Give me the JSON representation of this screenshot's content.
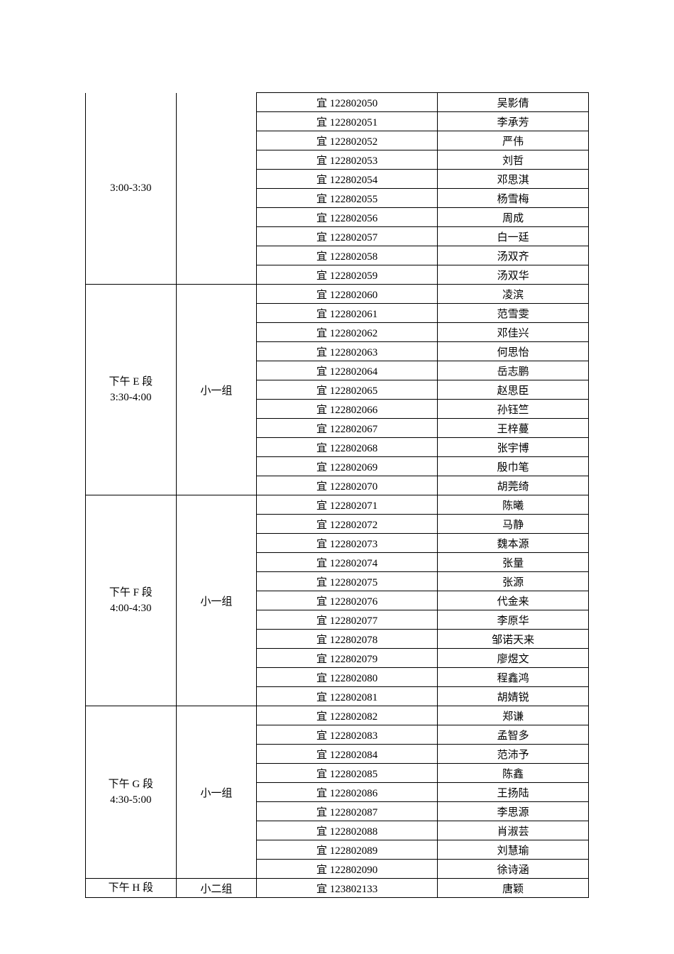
{
  "sessions": [
    {
      "session_label": "3:00-3:30",
      "group_label": "",
      "no_top": true,
      "rows": [
        {
          "id": "宜 122802050",
          "name": "吴影倩"
        },
        {
          "id": "宜 122802051",
          "name": "李承芳"
        },
        {
          "id": "宜 122802052",
          "name": "严伟"
        },
        {
          "id": "宜 122802053",
          "name": "刘哲"
        },
        {
          "id": "宜 122802054",
          "name": "邓思淇"
        },
        {
          "id": "宜 122802055",
          "name": "杨雪梅"
        },
        {
          "id": "宜 122802056",
          "name": "周成"
        },
        {
          "id": "宜 122802057",
          "name": "白一廷"
        },
        {
          "id": "宜 122802058",
          "name": "汤双齐"
        },
        {
          "id": "宜 122802059",
          "name": "汤双华"
        }
      ]
    },
    {
      "session_label": "下午 E 段\n3:30-4:00",
      "group_label": "小一组",
      "no_top": false,
      "rows": [
        {
          "id": "宜 122802060",
          "name": "凌滨"
        },
        {
          "id": "宜 122802061",
          "name": "范雪雯"
        },
        {
          "id": "宜 122802062",
          "name": "邓佳兴"
        },
        {
          "id": "宜 122802063",
          "name": "何思怡"
        },
        {
          "id": "宜 122802064",
          "name": "岳志鹏"
        },
        {
          "id": "宜 122802065",
          "name": "赵思臣"
        },
        {
          "id": "宜 122802066",
          "name": "孙钰竺"
        },
        {
          "id": "宜 122802067",
          "name": "王梓蔓"
        },
        {
          "id": "宜 122802068",
          "name": "张宇博"
        },
        {
          "id": "宜 122802069",
          "name": "殷巾笔"
        },
        {
          "id": "宜 122802070",
          "name": "胡莞绮"
        }
      ]
    },
    {
      "session_label": "下午 F 段\n4:00-4:30",
      "group_label": "小一组",
      "no_top": false,
      "rows": [
        {
          "id": "宜 122802071",
          "name": "陈曦"
        },
        {
          "id": "宜 122802072",
          "name": "马静"
        },
        {
          "id": "宜 122802073",
          "name": "魏本源"
        },
        {
          "id": "宜 122802074",
          "name": "张量"
        },
        {
          "id": "宜 122802075",
          "name": "张源"
        },
        {
          "id": "宜 122802076",
          "name": "代金来"
        },
        {
          "id": "宜 122802077",
          "name": "李原华"
        },
        {
          "id": "宜 122802078",
          "name": "邹诺天来"
        },
        {
          "id": "宜 122802079",
          "name": "廖煜文"
        },
        {
          "id": "宜 122802080",
          "name": "程鑫鸿"
        },
        {
          "id": "宜 122802081",
          "name": "胡婧锐"
        }
      ]
    },
    {
      "session_label": "下午 G 段\n4:30-5:00",
      "group_label": "小一组",
      "no_top": false,
      "rows": [
        {
          "id": "宜 122802082",
          "name": "郑谦"
        },
        {
          "id": "宜 122802083",
          "name": "孟智多"
        },
        {
          "id": "宜 122802084",
          "name": "范沛予"
        },
        {
          "id": "宜 122802085",
          "name": "陈鑫"
        },
        {
          "id": "宜 122802086",
          "name": "王扬陆"
        },
        {
          "id": "宜 122802087",
          "name": "李思源"
        },
        {
          "id": "宜 122802088",
          "name": "肖淑芸"
        },
        {
          "id": "宜 122802089",
          "name": "刘慧瑜"
        },
        {
          "id": "宜 122802090",
          "name": "徐诗涵"
        }
      ]
    },
    {
      "session_label": "下午 H 段",
      "group_label": "小二组",
      "no_top": false,
      "rows": [
        {
          "id": "宜 123802133",
          "name": "唐颖"
        }
      ]
    }
  ]
}
